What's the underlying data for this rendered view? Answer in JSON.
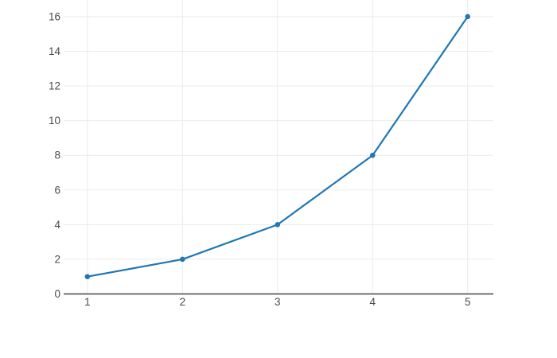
{
  "page": {
    "background_color": "#ffffff"
  },
  "chart_data": {
    "type": "line",
    "title": "",
    "xlabel": "",
    "ylabel": "",
    "x": [
      1,
      2,
      3,
      4,
      5
    ],
    "y": [
      1,
      2,
      4,
      8,
      16
    ],
    "x_ticks": [
      1,
      2,
      3,
      4,
      5
    ],
    "y_ticks": [
      0,
      2,
      4,
      6,
      8,
      10,
      12,
      14,
      16
    ],
    "x_range": [
      0.75,
      5.27
    ],
    "y_range": [
      0,
      16.96
    ],
    "grid": true,
    "legend": false,
    "legend_position": "none",
    "line_color": "#1f77b4",
    "marker_color": "#1f77b4",
    "marker_size": 6.5,
    "line_width": 2.2,
    "grid_color": "#ebebeb",
    "zeroline_color": "#444444",
    "tick_label_color": "#4a4a4a",
    "plot_background_color": "#ffffff"
  }
}
